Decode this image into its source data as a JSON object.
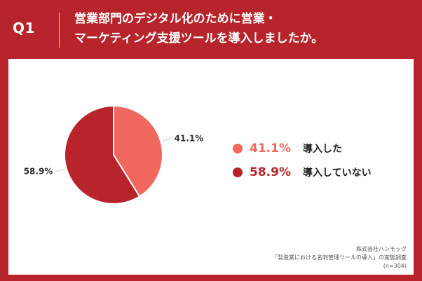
{
  "header": {
    "question": "Q1",
    "title_line1": "営業部門のデジタル化のために営業・",
    "title_line2": "マーケティング支援ツールを導入しましたか。"
  },
  "colors": {
    "background": "#b7242b",
    "slice_1": "#f0675d",
    "slice_2": "#b7242b"
  },
  "chart_data": {
    "type": "pie",
    "categories": [
      "導入した",
      "導入していない"
    ],
    "values": [
      41.1,
      58.9
    ],
    "data_labels": [
      "41.1%",
      "58.9%"
    ],
    "legend_position": "right"
  },
  "legend": [
    {
      "value": "41.1%",
      "label": "導入した"
    },
    {
      "value": "58.9%",
      "label": "導入していない"
    }
  ],
  "source": {
    "line1": "株式会社ハンモック",
    "line2": "「製造業における名刺管理ツールの導入」の実態調査",
    "line3": "(n=304)"
  }
}
